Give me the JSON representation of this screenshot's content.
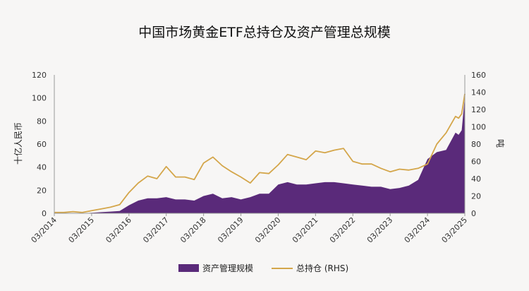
{
  "chart_data": {
    "type": "area",
    "title": "中国市场黄金ETF总持仓及资产管理总规模",
    "ylabel_left": "十亿人民币",
    "ylabel_right": "吨",
    "ylim_left": [
      0,
      120
    ],
    "ylim_right": [
      0,
      160
    ],
    "yticks_left": [
      0,
      20,
      40,
      60,
      80,
      100,
      120
    ],
    "yticks_right": [
      0,
      20,
      40,
      60,
      80,
      100,
      120,
      140,
      160
    ],
    "x_tick_labels": [
      "03/2014",
      "03/2015",
      "03/2016",
      "03/2017",
      "03/2018",
      "03/2019",
      "03/2020",
      "03/2021",
      "03/2022",
      "03/2023",
      "03/2024",
      "03/2025"
    ],
    "x_range": [
      "2014-03",
      "2025-03"
    ],
    "legend_position": "bottom-center",
    "grid": false,
    "series": [
      {
        "name": "资产管理规模",
        "type": "area",
        "axis": "left",
        "color": "#5a2a7a",
        "x": [
          "2014-03",
          "2014-06",
          "2014-09",
          "2014-12",
          "2015-03",
          "2015-06",
          "2015-09",
          "2015-12",
          "2016-03",
          "2016-06",
          "2016-09",
          "2016-12",
          "2017-03",
          "2017-06",
          "2017-09",
          "2017-12",
          "2018-03",
          "2018-06",
          "2018-09",
          "2018-12",
          "2019-03",
          "2019-06",
          "2019-09",
          "2019-12",
          "2020-03",
          "2020-06",
          "2020-09",
          "2020-12",
          "2021-03",
          "2021-06",
          "2021-09",
          "2021-12",
          "2022-03",
          "2022-06",
          "2022-09",
          "2022-12",
          "2023-03",
          "2023-06",
          "2023-09",
          "2023-12",
          "2024-03",
          "2024-06",
          "2024-09",
          "2024-12",
          "2025-01",
          "2025-02",
          "2025-03"
        ],
        "values": [
          0,
          0,
          0,
          0,
          0.5,
          1,
          1.5,
          2,
          7,
          11,
          13,
          13,
          14,
          12,
          12,
          11,
          15,
          17,
          13,
          14,
          12,
          14,
          17,
          17,
          25,
          27,
          25,
          25,
          26,
          27,
          27,
          26,
          25,
          24,
          23,
          23,
          21,
          22,
          24,
          29,
          47,
          53,
          55,
          70,
          68,
          72,
          101
        ]
      },
      {
        "name": "总持仓 (RHS)",
        "type": "line",
        "axis": "right",
        "color": "#d4a64a",
        "x": [
          "2014-03",
          "2014-06",
          "2014-09",
          "2014-12",
          "2015-03",
          "2015-06",
          "2015-09",
          "2015-12",
          "2016-03",
          "2016-06",
          "2016-09",
          "2016-12",
          "2017-03",
          "2017-06",
          "2017-09",
          "2017-12",
          "2018-03",
          "2018-06",
          "2018-09",
          "2018-12",
          "2019-03",
          "2019-06",
          "2019-09",
          "2019-12",
          "2020-03",
          "2020-06",
          "2020-09",
          "2020-12",
          "2021-03",
          "2021-06",
          "2021-09",
          "2021-12",
          "2022-03",
          "2022-06",
          "2022-09",
          "2022-12",
          "2023-03",
          "2023-06",
          "2023-09",
          "2023-12",
          "2024-03",
          "2024-06",
          "2024-09",
          "2024-12",
          "2025-01",
          "2025-02",
          "2025-03"
        ],
        "values": [
          1,
          1,
          2,
          1,
          3,
          5,
          7,
          10,
          24,
          35,
          43,
          40,
          54,
          42,
          42,
          39,
          58,
          65,
          55,
          48,
          42,
          35,
          47,
          46,
          56,
          68,
          65,
          62,
          72,
          70,
          73,
          75,
          60,
          57,
          57,
          52,
          48,
          51,
          50,
          52,
          57,
          80,
          93,
          112,
          110,
          115,
          138
        ]
      }
    ]
  }
}
